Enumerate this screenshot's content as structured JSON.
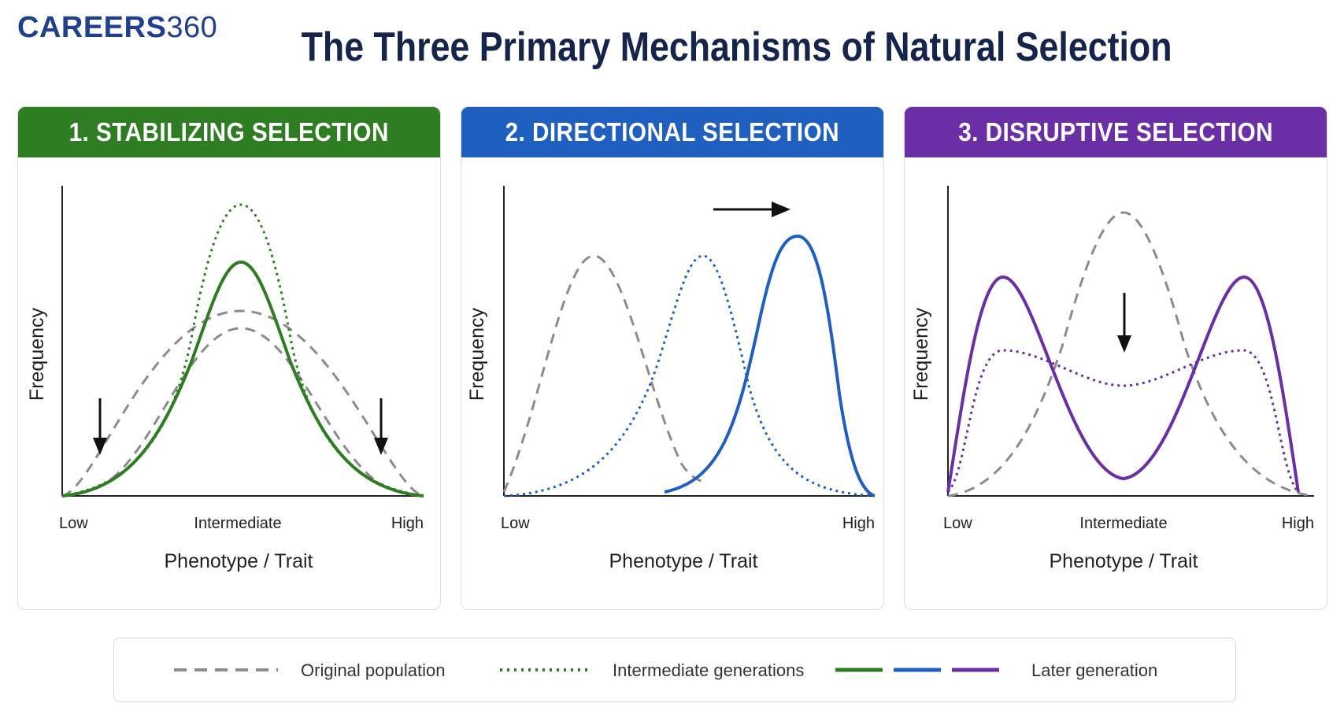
{
  "brand": {
    "bold": "CAREERS",
    "light": "360"
  },
  "title": "The Three Primary Mechanisms of Natural Selection",
  "panels": [
    {
      "heading": "1. STABILIZING SELECTION",
      "color": "#2e7d22",
      "ylabel": "Frequency",
      "xlabel": "Phenotype / Trait",
      "ticks": {
        "low": "Low",
        "mid": "Intermediate",
        "high": "High"
      }
    },
    {
      "heading": "2. DIRECTIONAL SELECTION",
      "color": "#1f5fbf",
      "ylabel": "Frequency",
      "xlabel": "Phenotype / Trait",
      "ticks": {
        "low": "Low",
        "mid": "",
        "high": "High"
      }
    },
    {
      "heading": "3. DISRUPTIVE SELECTION",
      "color": "#6a2fa5",
      "ylabel": "Frequency",
      "xlabel": "Phenotype / Trait",
      "ticks": {
        "low": "Low",
        "mid": "Intermediate",
        "high": "High"
      }
    }
  ],
  "legend": {
    "original": "Original population",
    "intermediate": "Intermediate generations",
    "later": "Later generation"
  },
  "colors": {
    "original": "#8c8c8c",
    "intermediate": "#2e7d22",
    "green": "#2e7d22",
    "blue": "#1f5fbf",
    "purple": "#6a2fa5",
    "text": "#222222"
  }
}
